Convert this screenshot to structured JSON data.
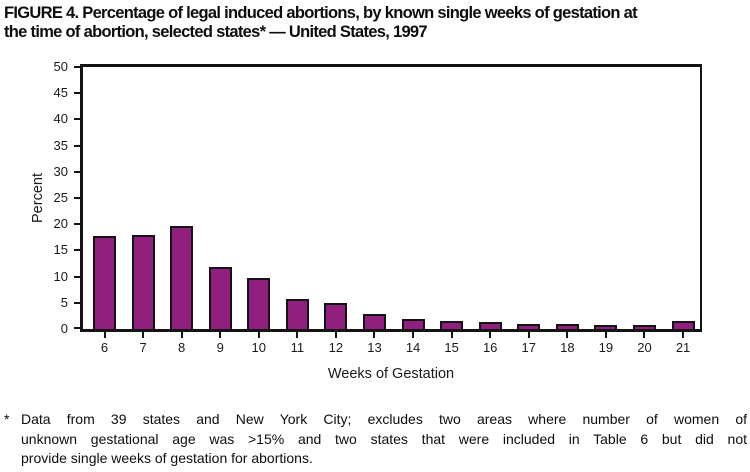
{
  "title": {
    "line1": "FIGURE 4. Percentage of legal induced abortions, by known single weeks of gestation at",
    "line2": "the time of abortion, selected states* — United States, 1997",
    "full": "FIGURE 4. Percentage of legal induced abortions, by known single weeks of gestation at the time of abortion, selected states* — United States, 1997"
  },
  "chart_data": {
    "type": "bar",
    "title": "FIGURE 4. Percentage of legal induced abortions, by known single weeks of gestation at the time of abortion, selected states* — United States, 1997",
    "categories": [
      "6",
      "7",
      "8",
      "9",
      "10",
      "11",
      "12",
      "13",
      "14",
      "15",
      "16",
      "17",
      "18",
      "19",
      "20",
      "21"
    ],
    "values": [
      17.7,
      18.0,
      19.6,
      11.8,
      9.7,
      5.8,
      4.9,
      2.9,
      2.0,
      1.6,
      1.4,
      1.0,
      1.0,
      0.7,
      0.7,
      1.5
    ],
    "xlabel": "Weeks of Gestation",
    "ylabel": "Percent",
    "ylim": [
      0,
      50
    ],
    "yticks": [
      0,
      5,
      10,
      15,
      20,
      25,
      30,
      35,
      40,
      45,
      50
    ],
    "grid": false,
    "legend": null,
    "bar_color": "#911f7d",
    "bar_border_color": "#141414",
    "axis_color": "#141414"
  },
  "footnote": {
    "marker": "*",
    "lines": [
      "Data from 39 states and New York City; excludes two areas where number of women of",
      "unknown gestational age was >15% and two states that were included in Table 6 but did not",
      "provide single weeks of gestation for abortions."
    ],
    "full": "* Data from 39 states and New York City; excludes two areas where number of women of unknown gestational age was >15% and two states that were included in Table 6 but did not provide single weeks of gestation for abortions."
  }
}
